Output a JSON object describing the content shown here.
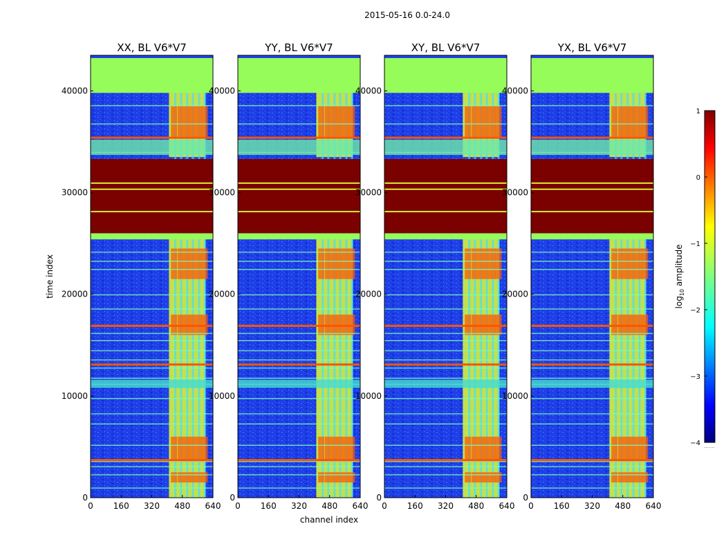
{
  "figure": {
    "suptitle": "2015-05-16 0.0-24.0"
  },
  "chart_data": [
    {
      "type": "heatmap",
      "title": "XX, BL V6*V7",
      "xlabel": "channel index",
      "ylabel": "time index",
      "xlim": [
        0,
        640
      ],
      "ylim": [
        0,
        43500
      ],
      "xticks": [
        "0",
        "160",
        "320",
        "480",
        "640"
      ],
      "yticks": [
        "0",
        "10000",
        "20000",
        "30000",
        "40000"
      ],
      "z": "log10 amplitude"
    },
    {
      "type": "heatmap",
      "title": "YY, BL V6*V7",
      "xlabel": "channel index",
      "ylabel": "time index",
      "xlim": [
        0,
        640
      ],
      "ylim": [
        0,
        43500
      ],
      "xticks": [
        "0",
        "160",
        "320",
        "480",
        "640"
      ],
      "yticks": [
        "0",
        "10000",
        "20000",
        "30000",
        "40000"
      ],
      "z": "log10 amplitude"
    },
    {
      "type": "heatmap",
      "title": "XY, BL V6*V7",
      "xlabel": "channel index",
      "ylabel": "time index",
      "xlim": [
        0,
        640
      ],
      "ylim": [
        0,
        43500
      ],
      "xticks": [
        "0",
        "160",
        "320",
        "480",
        "640"
      ],
      "yticks": [
        "0",
        "10000",
        "20000",
        "30000",
        "40000"
      ],
      "z": "log10 amplitude"
    },
    {
      "type": "heatmap",
      "title": "YX, BL V6*V7",
      "xlabel": "channel index",
      "ylabel": "time index",
      "xlim": [
        0,
        640
      ],
      "ylim": [
        0,
        43500
      ],
      "xticks": [
        "0",
        "160",
        "320",
        "480",
        "640"
      ],
      "yticks": [
        "0",
        "10000",
        "20000",
        "30000",
        "40000"
      ],
      "z": "log10 amplitude"
    }
  ],
  "colorbar": {
    "label_prefix": "log",
    "label_sub": "10",
    "label_suffix": " amplitude",
    "ticks": [
      "1",
      "0",
      "−1",
      "−2",
      "−3",
      "−4"
    ],
    "range": [
      -4,
      1
    ],
    "colormap": "jet",
    "footnote": "......."
  },
  "axes_labels": {
    "x": "channel index",
    "y": "time index"
  },
  "colors": {
    "flag_band": "#96fc5a",
    "saturated_band": "#7b0000",
    "background": "#1f3fe6"
  }
}
